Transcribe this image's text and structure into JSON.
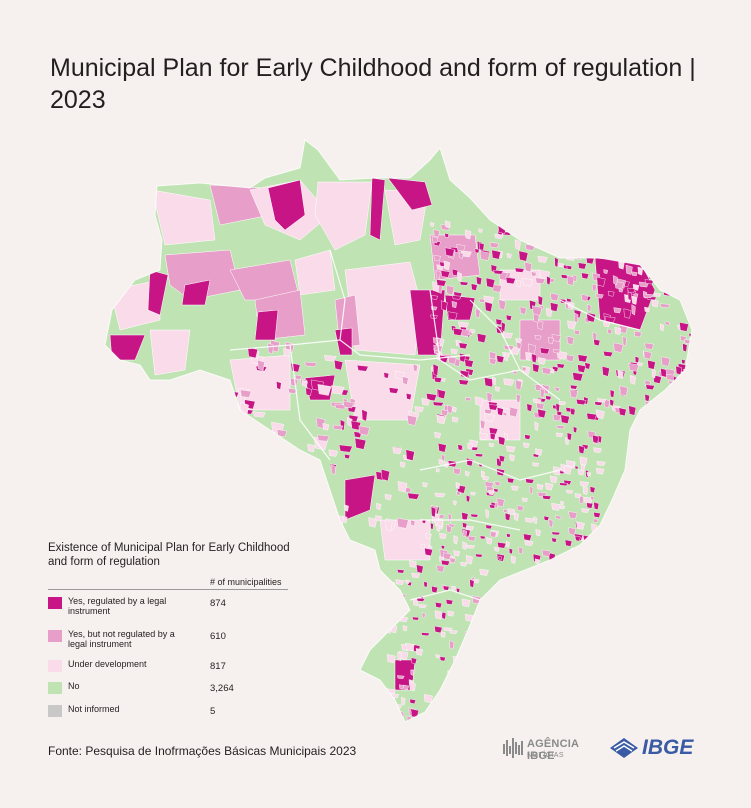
{
  "title": "Municipal Plan for Early Childhood and form of regulation | 2023",
  "legend": {
    "title": "Existence of Municipal Plan for Early Childhood and form of regulation",
    "column_header": "# of municipalities",
    "items": [
      {
        "label": "Yes, regulated by a legal instrument",
        "count": "874",
        "color": "#c71585"
      },
      {
        "label": "Yes, but not regulated by a legal instrument",
        "count": "610",
        "color": "#e79ec8"
      },
      {
        "label": "Under development",
        "count": "817",
        "color": "#fadbea"
      },
      {
        "label": "No",
        "count": "3,264",
        "color": "#bfe3b3"
      },
      {
        "label": "Not informed",
        "count": "5",
        "color": "#c8c8c8"
      }
    ]
  },
  "source": "Fonte: Pesquisa de Inofrmações Básicas Municipais 2023",
  "logos": {
    "agencia_line1": "AGÊNCIA IBGE",
    "agencia_line2": "NOTÍCIAS",
    "ibge": "IBGE"
  },
  "colors": {
    "background": "#f6f1ee",
    "no": "#bfe3b3",
    "yes_regulated": "#c71585",
    "yes_not_regulated": "#e79ec8",
    "under_development": "#fadbea"
  }
}
